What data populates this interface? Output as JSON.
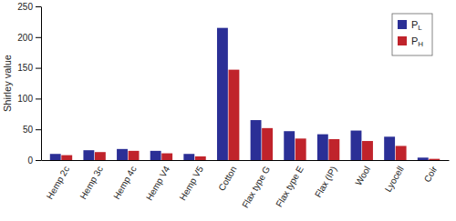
{
  "chart_data": {
    "type": "bar",
    "y_label": "Shirley value",
    "categories": [
      "Hemp 2c",
      "Hemp 3c",
      "Hemp 4c",
      "Hemp V4",
      "Hemp V5",
      "Cotton",
      "Flax type G",
      "Flax type E",
      "Flax (IP)",
      "Wool",
      "Lyocell",
      "Coir"
    ],
    "series": [
      {
        "name": "PL",
        "color": "#2b2f96",
        "values": [
          10,
          16,
          18,
          15,
          10,
          215,
          65,
          47,
          42,
          48,
          38,
          4
        ]
      },
      {
        "name": "PH",
        "color": "#c0232b",
        "values": [
          8,
          13,
          15,
          11,
          6,
          147,
          52,
          35,
          34,
          31,
          23,
          2
        ]
      }
    ],
    "ylim": [
      0,
      250
    ],
    "yticks": [
      0,
      50,
      100,
      150,
      200,
      250
    ],
    "grid": false,
    "legend": "top-right"
  }
}
